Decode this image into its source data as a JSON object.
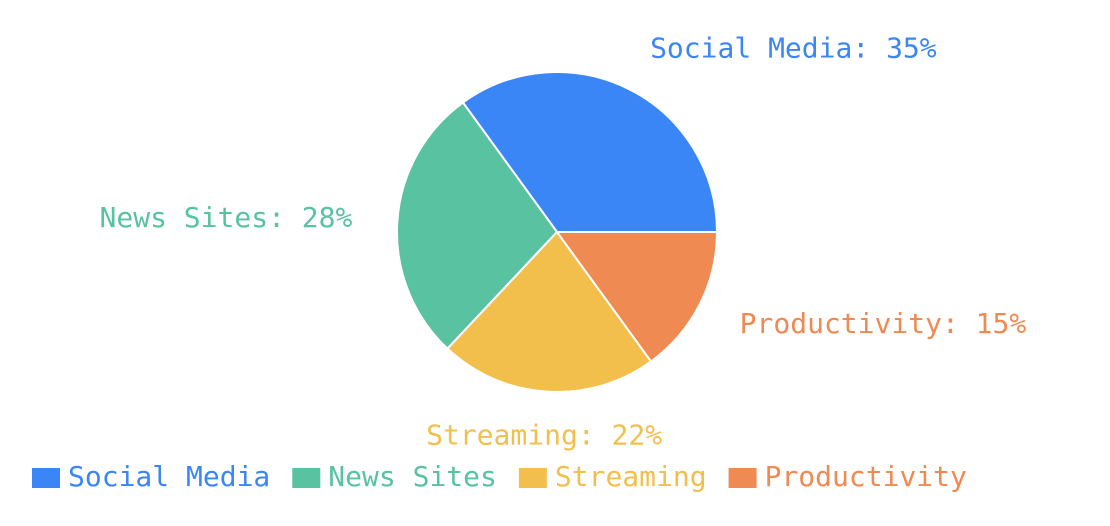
{
  "chart_data": {
    "type": "pie",
    "categories": [
      "Social Media",
      "News Sites",
      "Streaming",
      "Productivity"
    ],
    "values": [
      35,
      28,
      22,
      15
    ],
    "value_labels": [
      "Social Media: 35%",
      "News Sites: 28%",
      "Streaming: 22%",
      "Productivity: 15%"
    ],
    "colors": [
      "#3b86f6",
      "#58c2a1",
      "#f3bf4c",
      "#ef8a52"
    ],
    "legend": "bottom"
  }
}
